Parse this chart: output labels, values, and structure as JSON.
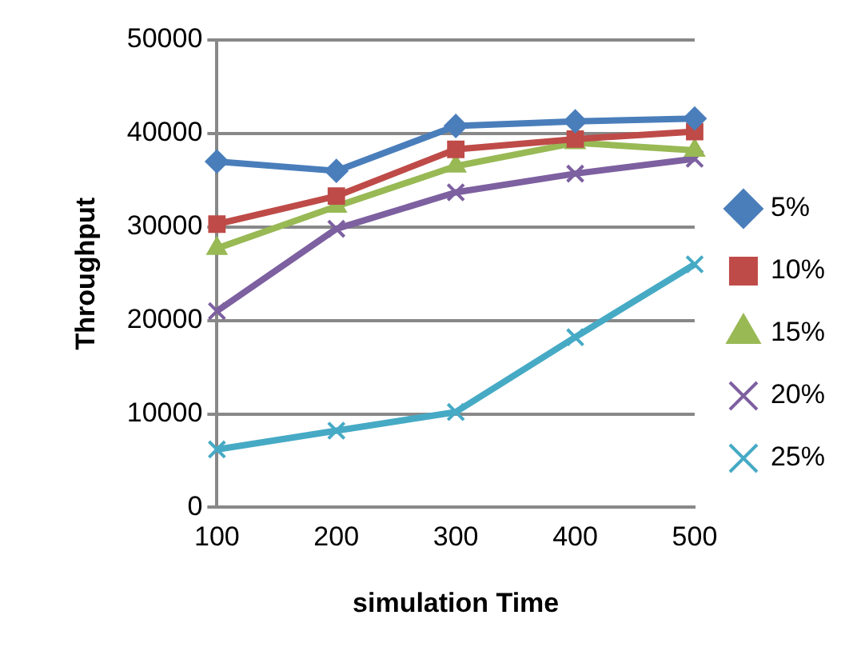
{
  "chart_data": {
    "type": "line",
    "xlabel": "simulation Time",
    "ylabel": "Throughput",
    "categories": [
      "100",
      "200",
      "300",
      "400",
      "500"
    ],
    "series": [
      {
        "name": "5%",
        "color": "#4a7ebb",
        "marker": "diamond",
        "values": [
          37000,
          36000,
          40800,
          41300,
          41600
        ]
      },
      {
        "name": "10%",
        "color": "#be4b48",
        "marker": "square",
        "values": [
          30300,
          33300,
          38300,
          39400,
          40200
        ]
      },
      {
        "name": "15%",
        "color": "#98b954",
        "marker": "triangle",
        "values": [
          27700,
          32200,
          36500,
          39000,
          38200
        ]
      },
      {
        "name": "20%",
        "color": "#7d60a0",
        "marker": "cross",
        "values": [
          21000,
          29800,
          33700,
          35700,
          37300
        ]
      },
      {
        "name": "25%",
        "color": "#46aac5",
        "marker": "cross",
        "values": [
          6200,
          8200,
          10200,
          18200,
          26000
        ]
      }
    ],
    "ylim": [
      0,
      50000
    ],
    "yticks": [
      0,
      10000,
      20000,
      30000,
      40000,
      50000
    ],
    "grid": "y",
    "legend": "right",
    "line_style": "solid"
  }
}
